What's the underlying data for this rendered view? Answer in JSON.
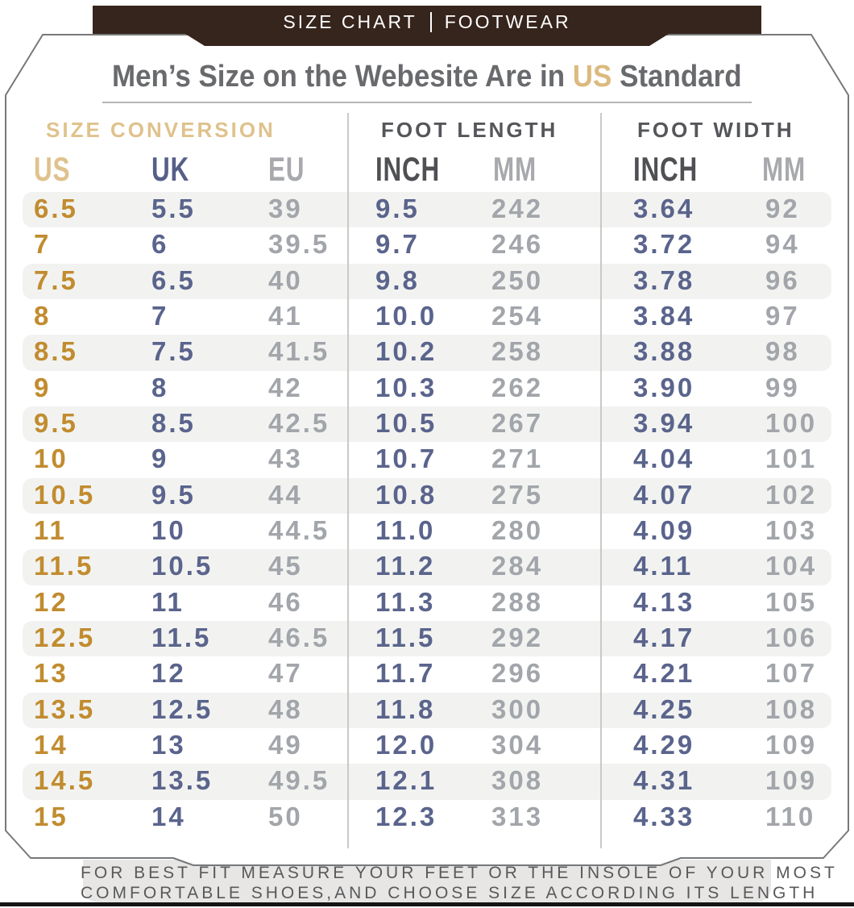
{
  "banner": {
    "left": "SIZE CHART",
    "right": "FOOTWEAR"
  },
  "title": {
    "prefix": "Men’s Size on the Webesite Are in ",
    "highlight": "US",
    "suffix": " Standard"
  },
  "footnote": {
    "line1": "FOR BEST FIT MEASURE YOUR FEET OR THE INSOLE OF YOUR MOST",
    "line2": "COMFORTABLE SHOES,AND CHOOSE SIZE ACCORDING ITS LENGTH"
  },
  "colors": {
    "banner_bg": "#36251d",
    "banner_text": "#ffffff",
    "title_text": "#696a6d",
    "accent_tan": "#dfc28c",
    "us_gold": "#c18c2f",
    "navy": "#5a648c",
    "muted_gray": "#a2a5aa",
    "dark_gray": "#55565a",
    "row_stripe": "#f2f3f1",
    "note_bg": "#e7e6e4",
    "note_text": "#58595b"
  },
  "chart_data": {
    "type": "table",
    "title": "Men’s Size on the Webesite Are in US Standard",
    "column_groups": [
      "SIZE CONVERSION",
      "FOOT LENGTH",
      "FOOT WIDTH"
    ],
    "columns": [
      "US",
      "UK",
      "EU",
      "INCH",
      "MM",
      "INCH",
      "MM"
    ],
    "rows": [
      [
        "6.5",
        "5.5",
        "39",
        "9.5",
        "242",
        "3.64",
        "92"
      ],
      [
        "7",
        "6",
        "39.5",
        "9.7",
        "246",
        "3.72",
        "94"
      ],
      [
        "7.5",
        "6.5",
        "40",
        "9.8",
        "250",
        "3.78",
        "96"
      ],
      [
        "8",
        "7",
        "41",
        "10.0",
        "254",
        "3.84",
        "97"
      ],
      [
        "8.5",
        "7.5",
        "41.5",
        "10.2",
        "258",
        "3.88",
        "98"
      ],
      [
        "9",
        "8",
        "42",
        "10.3",
        "262",
        "3.90",
        "99"
      ],
      [
        "9.5",
        "8.5",
        "42.5",
        "10.5",
        "267",
        "3.94",
        "100"
      ],
      [
        "10",
        "9",
        "43",
        "10.7",
        "271",
        "4.04",
        "101"
      ],
      [
        "10.5",
        "9.5",
        "44",
        "10.8",
        "275",
        "4.07",
        "102"
      ],
      [
        "11",
        "10",
        "44.5",
        "11.0",
        "280",
        "4.09",
        "103"
      ],
      [
        "11.5",
        "10.5",
        "45",
        "11.2",
        "284",
        "4.11",
        "104"
      ],
      [
        "12",
        "11",
        "46",
        "11.3",
        "288",
        "4.13",
        "105"
      ],
      [
        "12.5",
        "11.5",
        "46.5",
        "11.5",
        "292",
        "4.17",
        "106"
      ],
      [
        "13",
        "12",
        "47",
        "11.7",
        "296",
        "4.21",
        "107"
      ],
      [
        "13.5",
        "12.5",
        "48",
        "11.8",
        "300",
        "4.25",
        "108"
      ],
      [
        "14",
        "13",
        "49",
        "12.0",
        "304",
        "4.29",
        "109"
      ],
      [
        "14.5",
        "13.5",
        "49.5",
        "12.1",
        "308",
        "4.31",
        "109"
      ],
      [
        "15",
        "14",
        "50",
        "12.3",
        "313",
        "4.33",
        "110"
      ]
    ]
  }
}
